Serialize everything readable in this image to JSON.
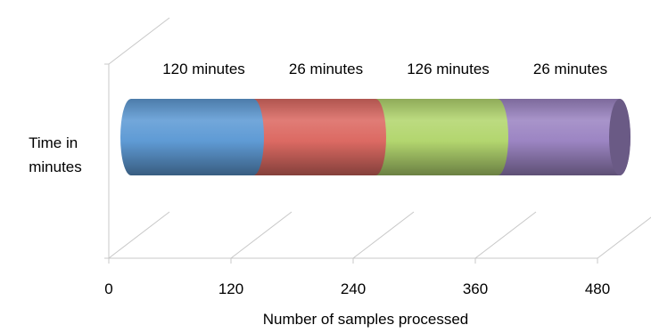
{
  "chart_data": {
    "type": "bar",
    "orientation": "horizontal",
    "stacked": true,
    "style": "3d-cylinder",
    "xlabel": "Number of samples processed",
    "ylabel": "Time in minutes",
    "ylabel_lines": [
      "Time in",
      "minutes"
    ],
    "xlim": [
      0,
      480
    ],
    "xticks": [
      "0",
      "120",
      "240",
      "360",
      "480"
    ],
    "grid": true,
    "legend": "none",
    "series": [
      {
        "start": 0,
        "end": 120,
        "value": 120,
        "label": "120 minutes",
        "color": "#5f9bd5"
      },
      {
        "start": 120,
        "end": 240,
        "value": 26,
        "label": "26 minutes",
        "color": "#dc6a63"
      },
      {
        "start": 240,
        "end": 360,
        "value": 126,
        "label": "126 minutes",
        "color": "#b3d66f"
      },
      {
        "start": 360,
        "end": 480,
        "value": 26,
        "label": "26 minutes",
        "color": "#9c85c3"
      }
    ]
  }
}
